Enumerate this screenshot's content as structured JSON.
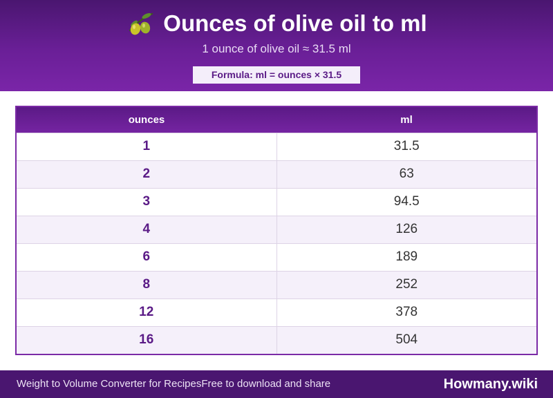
{
  "header": {
    "title": "Ounces of olive oil to ml",
    "subtitle": "1 ounce of olive oil ≈ 31.5 ml",
    "formula": "Formula: ml = ounces × 31.5",
    "icon": "olive-icon"
  },
  "table": {
    "columns": [
      "ounces",
      "ml"
    ],
    "rows": [
      [
        "1",
        "31.5"
      ],
      [
        "2",
        "63"
      ],
      [
        "3",
        "94.5"
      ],
      [
        "4",
        "126"
      ],
      [
        "6",
        "189"
      ],
      [
        "8",
        "252"
      ],
      [
        "12",
        "378"
      ],
      [
        "16",
        "504"
      ]
    ]
  },
  "footer": {
    "left_text": "Weight to Volume Converter for Recipes",
    "middle_text": "Free to download and share",
    "brand": "Howmany.wiki"
  },
  "colors": {
    "accent": "#6a1f97",
    "dark": "#4a1670",
    "row_alt": "#f5f0fa"
  }
}
